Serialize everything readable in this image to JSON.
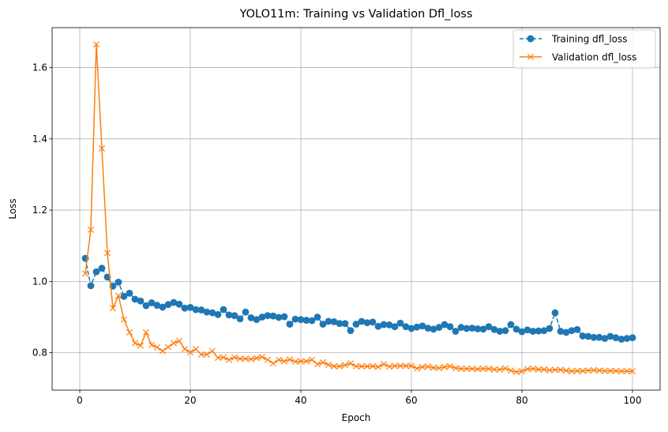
{
  "chart_data": {
    "type": "line",
    "title": "YOLO11m: Training vs Validation Dfl_loss",
    "xlabel": "Epoch",
    "ylabel": "Loss",
    "xlim": [
      -5,
      105
    ],
    "ylim": [
      0.695,
      1.712
    ],
    "xticks": [
      0,
      20,
      40,
      60,
      80,
      100
    ],
    "yticks": [
      0.8,
      1.0,
      1.2,
      1.4,
      1.6
    ],
    "grid": true,
    "legend_position": "top-right",
    "series": [
      {
        "name": "Training dfl_loss",
        "color": "#1f77b4",
        "marker": "circle",
        "linestyle": "dashed",
        "x": [
          1,
          2,
          3,
          4,
          5,
          6,
          7,
          8,
          9,
          10,
          11,
          12,
          13,
          14,
          15,
          16,
          17,
          18,
          19,
          20,
          21,
          22,
          23,
          24,
          25,
          26,
          27,
          28,
          29,
          30,
          31,
          32,
          33,
          34,
          35,
          36,
          37,
          38,
          39,
          40,
          41,
          42,
          43,
          44,
          45,
          46,
          47,
          48,
          49,
          50,
          51,
          52,
          53,
          54,
          55,
          56,
          57,
          58,
          59,
          60,
          61,
          62,
          63,
          64,
          65,
          66,
          67,
          68,
          69,
          70,
          71,
          72,
          73,
          74,
          75,
          76,
          77,
          78,
          79,
          80,
          81,
          82,
          83,
          84,
          85,
          86,
          87,
          88,
          89,
          90,
          91,
          92,
          93,
          94,
          95,
          96,
          97,
          98,
          99,
          100
        ],
        "values": [
          1.065,
          0.988,
          1.027,
          1.037,
          1.012,
          0.987,
          0.998,
          0.958,
          0.967,
          0.95,
          0.945,
          0.932,
          0.94,
          0.933,
          0.928,
          0.935,
          0.941,
          0.936,
          0.925,
          0.927,
          0.921,
          0.92,
          0.914,
          0.912,
          0.907,
          0.921,
          0.906,
          0.904,
          0.895,
          0.914,
          0.898,
          0.893,
          0.9,
          0.904,
          0.903,
          0.899,
          0.901,
          0.88,
          0.894,
          0.893,
          0.891,
          0.89,
          0.9,
          0.88,
          0.888,
          0.887,
          0.882,
          0.882,
          0.862,
          0.88,
          0.888,
          0.884,
          0.886,
          0.874,
          0.879,
          0.878,
          0.873,
          0.883,
          0.873,
          0.868,
          0.872,
          0.875,
          0.869,
          0.866,
          0.871,
          0.879,
          0.873,
          0.86,
          0.871,
          0.868,
          0.869,
          0.867,
          0.866,
          0.873,
          0.865,
          0.86,
          0.862,
          0.879,
          0.866,
          0.859,
          0.864,
          0.86,
          0.861,
          0.862,
          0.868,
          0.912,
          0.86,
          0.857,
          0.862,
          0.865,
          0.847,
          0.846,
          0.843,
          0.843,
          0.84,
          0.846,
          0.842,
          0.838,
          0.84,
          0.842
        ]
      },
      {
        "name": "Validation dfl_loss",
        "color": "#ff7f0e",
        "marker": "x",
        "linestyle": "solid",
        "x": [
          1,
          2,
          3,
          4,
          5,
          6,
          7,
          8,
          9,
          10,
          11,
          12,
          13,
          14,
          15,
          16,
          17,
          18,
          19,
          20,
          21,
          22,
          23,
          24,
          25,
          26,
          27,
          28,
          29,
          30,
          31,
          32,
          33,
          34,
          35,
          36,
          37,
          38,
          39,
          40,
          41,
          42,
          43,
          44,
          45,
          46,
          47,
          48,
          49,
          50,
          51,
          52,
          53,
          54,
          55,
          56,
          57,
          58,
          59,
          60,
          61,
          62,
          63,
          64,
          65,
          66,
          67,
          68,
          69,
          70,
          71,
          72,
          73,
          74,
          75,
          76,
          77,
          78,
          79,
          80,
          81,
          82,
          83,
          84,
          85,
          86,
          87,
          88,
          89,
          90,
          91,
          92,
          93,
          94,
          95,
          96,
          97,
          98,
          99,
          100
        ],
        "values": [
          1.022,
          1.145,
          1.665,
          1.373,
          1.08,
          0.925,
          0.96,
          0.893,
          0.857,
          0.827,
          0.82,
          0.857,
          0.822,
          0.815,
          0.805,
          0.816,
          0.827,
          0.833,
          0.81,
          0.801,
          0.81,
          0.795,
          0.795,
          0.805,
          0.786,
          0.787,
          0.78,
          0.787,
          0.783,
          0.783,
          0.782,
          0.785,
          0.788,
          0.78,
          0.77,
          0.78,
          0.776,
          0.781,
          0.775,
          0.776,
          0.776,
          0.78,
          0.768,
          0.773,
          0.766,
          0.762,
          0.762,
          0.765,
          0.77,
          0.762,
          0.762,
          0.762,
          0.762,
          0.76,
          0.768,
          0.761,
          0.763,
          0.763,
          0.763,
          0.763,
          0.756,
          0.76,
          0.761,
          0.758,
          0.757,
          0.76,
          0.762,
          0.757,
          0.755,
          0.755,
          0.755,
          0.754,
          0.755,
          0.755,
          0.753,
          0.753,
          0.756,
          0.75,
          0.746,
          0.748,
          0.754,
          0.755,
          0.753,
          0.753,
          0.751,
          0.752,
          0.752,
          0.75,
          0.748,
          0.749,
          0.749,
          0.75,
          0.751,
          0.75,
          0.749,
          0.749,
          0.749,
          0.748,
          0.748,
          0.748
        ]
      }
    ]
  }
}
